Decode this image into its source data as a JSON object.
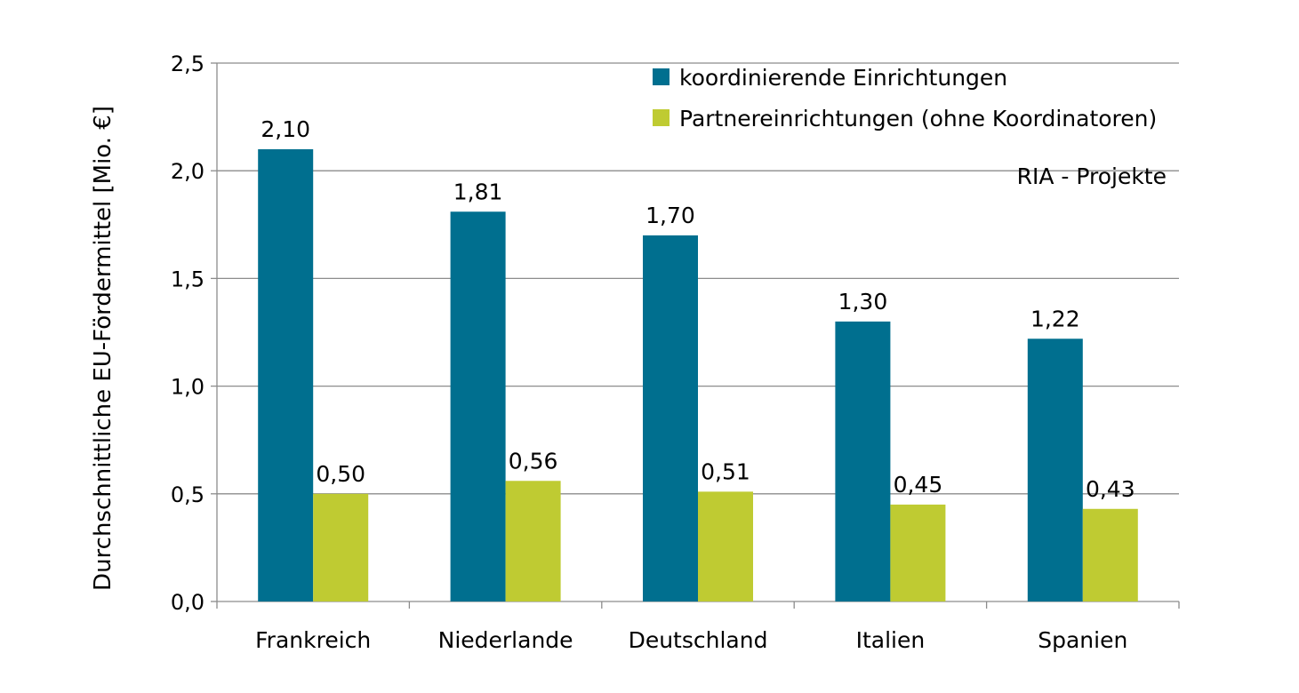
{
  "chart_data": {
    "type": "bar",
    "title": "",
    "xlabel": "",
    "ylabel": "Durchschnittliche EU-Fördermittel   [Mio. €]",
    "ylim": [
      0,
      2.5
    ],
    "yticks": [
      0,
      0.5,
      1,
      1.5,
      2,
      2.5
    ],
    "ytick_labels": [
      "0,0",
      "0,5",
      "1,0",
      "1,5",
      "2,0",
      "2,5"
    ],
    "grid": true,
    "legend_position": "top-right",
    "annotation": "RIA - Projekte",
    "categories": [
      "Frankreich",
      "Niederlande",
      "Deutschland",
      "Italien",
      "Spanien"
    ],
    "series": [
      {
        "name": "koordinierende Einrichtungen",
        "color": "#006F8F",
        "values": [
          2.1,
          1.81,
          1.7,
          1.3,
          1.22
        ],
        "labels": [
          "2,10",
          "1,81",
          "1,70",
          "1,30",
          "1,22"
        ]
      },
      {
        "name": "Partnereinrichtungen (ohne Koordinatoren)",
        "color": "#BFCB32",
        "values": [
          0.5,
          0.56,
          0.51,
          0.45,
          0.43
        ],
        "labels": [
          "0,50",
          "0,56",
          "0,51",
          "0,45",
          "0,43"
        ]
      }
    ]
  }
}
